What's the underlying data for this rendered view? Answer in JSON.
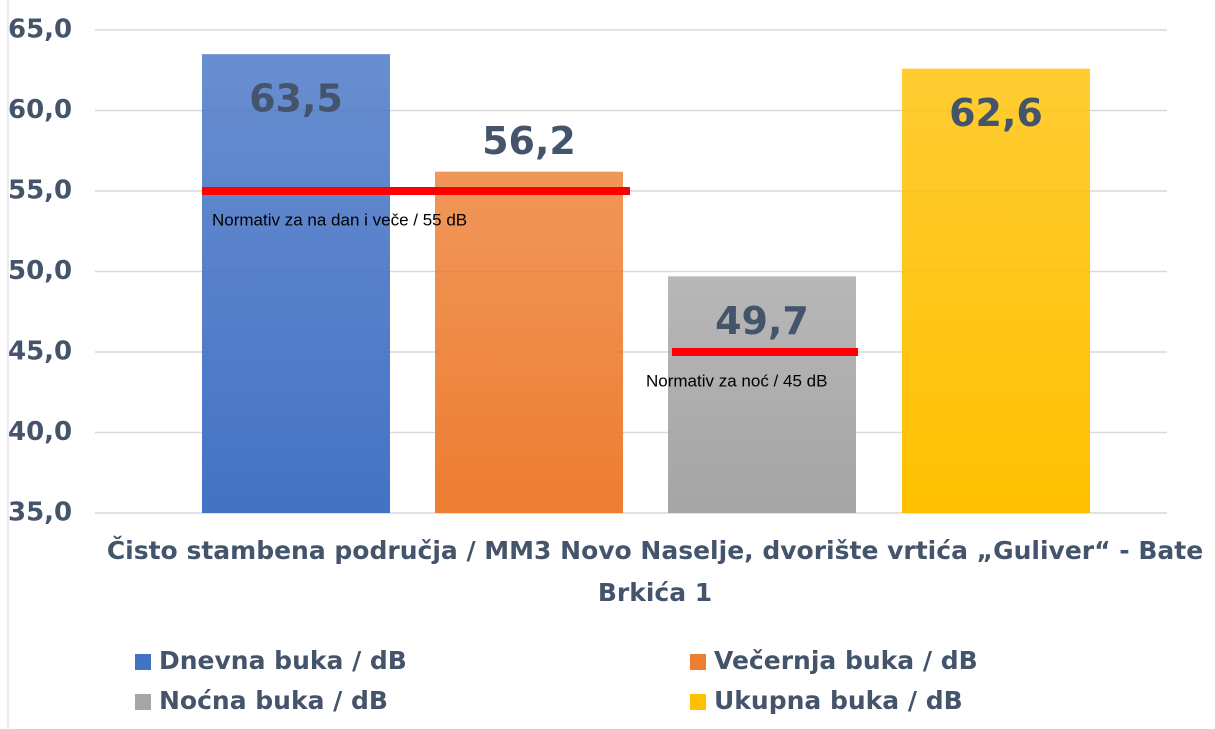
{
  "chart_data": {
    "type": "bar",
    "categories": [
      "Čisto stambena područja / MM3 Novo Naselje, dvorište vrtića „Guliver“ - Bate Brkića 1"
    ],
    "series": [
      {
        "name": "Dnevna buka / dB",
        "color": "#4472c4",
        "values": [
          63.5
        ],
        "value_labels": [
          "63,5"
        ]
      },
      {
        "name": "Večernja buka / dB",
        "color": "#ed7d31",
        "values": [
          56.2
        ],
        "value_labels": [
          "56,2"
        ]
      },
      {
        "name": "Noćna buka / dB",
        "color": "#a5a5a5",
        "values": [
          49.7
        ],
        "value_labels": [
          "49,7"
        ]
      },
      {
        "name": "Ukupna buka / dB",
        "color": "#ffc000",
        "values": [
          62.6
        ],
        "value_labels": [
          "62,6"
        ]
      }
    ],
    "reference_lines": [
      {
        "value": 55,
        "label": "Normativ za na dan i veče / 55 dB",
        "color": "#ff0000"
      },
      {
        "value": 45,
        "label": "Normativ za noć / 45 dB",
        "color": "#ff0000"
      }
    ],
    "ylim": [
      35,
      65
    ],
    "yticks": [
      {
        "value": 35,
        "label": "35,0"
      },
      {
        "value": 40,
        "label": "40,0"
      },
      {
        "value": 45,
        "label": "45,0"
      },
      {
        "value": 50,
        "label": "50,0"
      },
      {
        "value": 55,
        "label": "55,0"
      },
      {
        "value": 60,
        "label": "60,0"
      },
      {
        "value": 65,
        "label": "65,0"
      }
    ],
    "grid": true
  }
}
